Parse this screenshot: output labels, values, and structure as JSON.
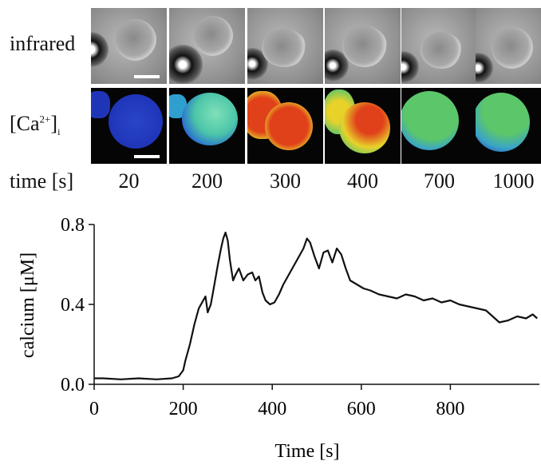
{
  "labels": {
    "infrared": "infrared",
    "calcium_prefix": "[Ca",
    "calcium_sup": "2+",
    "calcium_suffix": "]",
    "calcium_sub": "i",
    "time": "time [s]"
  },
  "frame_times": [
    "20",
    "200",
    "300",
    "400",
    "700",
    "1000"
  ],
  "colors": {
    "trace": "#111111",
    "cell_blue": "#1f35b8",
    "cell_green": "#5cc66b",
    "cell_red": "#e0401a",
    "cell_yellow": "#e8d22a"
  },
  "chart_data": {
    "type": "line",
    "xlabel": "Time [s]",
    "ylabel": "calcium [μM]",
    "xlim": [
      0,
      1000
    ],
    "ylim": [
      0,
      0.8
    ],
    "xticks": [
      "0",
      "200",
      "400",
      "600",
      "800"
    ],
    "yticks": [
      "0.0",
      "0.4",
      "0.8"
    ],
    "grid": false,
    "series": [
      {
        "x": [
          0,
          20,
          60,
          100,
          140,
          175,
          190,
          200,
          205,
          215,
          225,
          235,
          245,
          250,
          255,
          262,
          270,
          278,
          285,
          290,
          295,
          300,
          305,
          312,
          318,
          325,
          335,
          345,
          355,
          362,
          370,
          378,
          385,
          395,
          405,
          415,
          425,
          440,
          455,
          470,
          478,
          485,
          495,
          505,
          515,
          525,
          535,
          545,
          555,
          565,
          575,
          590,
          605,
          620,
          640,
          660,
          680,
          700,
          720,
          740,
          760,
          780,
          800,
          820,
          840,
          860,
          880,
          900,
          910,
          930,
          950,
          970,
          985,
          995
        ],
        "y": [
          0.03,
          0.03,
          0.025,
          0.03,
          0.025,
          0.03,
          0.04,
          0.07,
          0.12,
          0.2,
          0.3,
          0.38,
          0.42,
          0.44,
          0.36,
          0.4,
          0.5,
          0.6,
          0.68,
          0.73,
          0.76,
          0.72,
          0.62,
          0.52,
          0.55,
          0.58,
          0.52,
          0.55,
          0.56,
          0.52,
          0.54,
          0.46,
          0.42,
          0.4,
          0.41,
          0.45,
          0.5,
          0.56,
          0.62,
          0.68,
          0.73,
          0.71,
          0.64,
          0.58,
          0.66,
          0.67,
          0.61,
          0.68,
          0.65,
          0.58,
          0.52,
          0.5,
          0.48,
          0.47,
          0.45,
          0.44,
          0.43,
          0.45,
          0.44,
          0.42,
          0.43,
          0.41,
          0.42,
          0.4,
          0.39,
          0.38,
          0.37,
          0.33,
          0.31,
          0.32,
          0.34,
          0.33,
          0.35,
          0.33
        ]
      }
    ]
  }
}
